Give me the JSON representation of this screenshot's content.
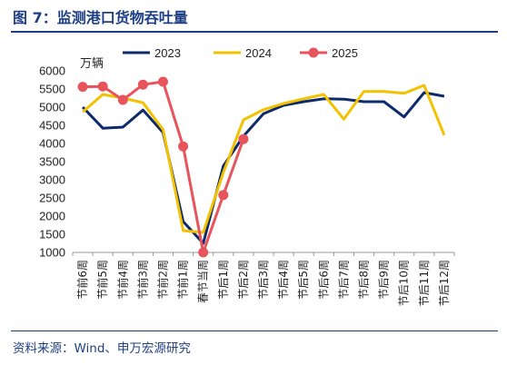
{
  "figure": {
    "title": "图 7：监测港口货物吞吐量",
    "source": "资料来源：Wind、申万宏源研究"
  },
  "chart_data": {
    "type": "line",
    "unit_label": "万辆",
    "categories": [
      "节前6周",
      "节前5周",
      "节前4周",
      "节前3周",
      "节前2周",
      "节前1周",
      "春节当周",
      "节后1周",
      "节后2周",
      "节后3周",
      "节后4周",
      "节后5周",
      "节后6周",
      "节后7周",
      "节后8周",
      "节后9周",
      "节后10周",
      "节后11周",
      "节后12周"
    ],
    "ylim": [
      1000,
      6000
    ],
    "yticks": [
      1000,
      1500,
      2000,
      2500,
      3000,
      3500,
      4000,
      4500,
      5000,
      5500,
      6000
    ],
    "grid": false,
    "legend_position": "top",
    "series": [
      {
        "name": "2023",
        "color": "#0d2a6b",
        "marker": false,
        "values": [
          5000,
          4420,
          4450,
          4920,
          4300,
          1850,
          1250,
          3380,
          4200,
          4820,
          5050,
          5150,
          5230,
          5220,
          5150,
          5150,
          4730,
          5400,
          5300
        ]
      },
      {
        "name": "2024",
        "color": "#f2c200",
        "marker": false,
        "values": [
          4870,
          5350,
          5250,
          5120,
          4380,
          1600,
          1550,
          3200,
          4650,
          4930,
          5100,
          5230,
          5350,
          4670,
          5430,
          5430,
          5380,
          5600,
          4230
        ]
      },
      {
        "name": "2025",
        "color": "#e8545c",
        "marker": true,
        "values": [
          5560,
          5570,
          5200,
          5620,
          5700,
          3920,
          1000,
          2580,
          4120,
          null,
          null,
          null,
          null,
          null,
          null,
          null,
          null,
          null,
          null
        ]
      }
    ]
  }
}
